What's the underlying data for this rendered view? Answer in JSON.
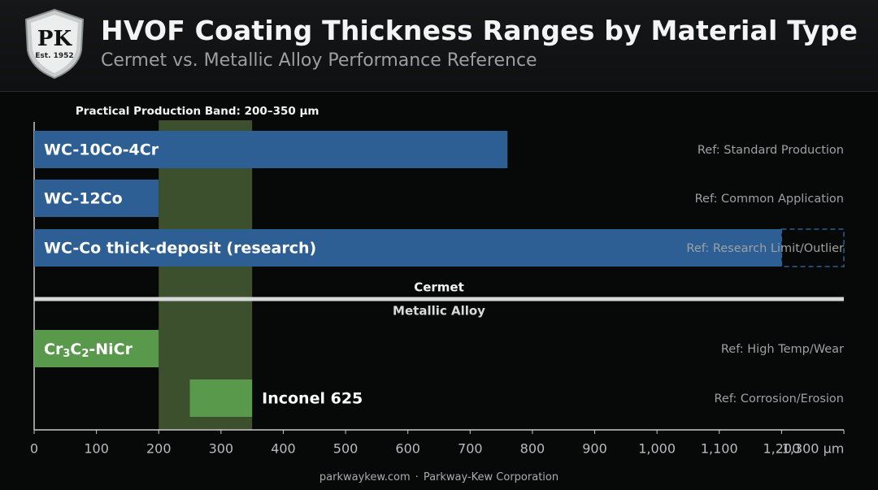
{
  "header": {
    "logo_text": "PK",
    "logo_subtext": "Est. 1952",
    "title": "HVOF Coating Thickness Ranges by Material Type",
    "subtitle": "Cermet vs. Metallic Alloy Performance Reference"
  },
  "chart_data": {
    "type": "bar",
    "orientation": "horizontal",
    "x_unit": "µm",
    "xlim": [
      0,
      1300
    ],
    "x_ticks": [
      "0",
      "100",
      "200",
      "300",
      "400",
      "500",
      "600",
      "700",
      "800",
      "900",
      "1,000",
      "1,100",
      "1,200",
      "1,300 µm"
    ],
    "band": {
      "label": "Practical Production Band: 200–350 µm",
      "start": 200,
      "end": 350
    },
    "divider": {
      "upper_label": "Cermet",
      "lower_label": "Metallic Alloy"
    },
    "groups": [
      {
        "name": "Cermet",
        "color": "#2d5f94",
        "bars": [
          {
            "label": "WC-10Co-4Cr",
            "start": 0,
            "end": 760,
            "ref": "Ref: Standard Production"
          },
          {
            "label": "WC-12Co",
            "start": 0,
            "end": 200,
            "ref": "Ref: Common Application"
          },
          {
            "label": "WC-Co thick-deposit (research)",
            "start": 0,
            "end": 1200,
            "dashed_to": 1300,
            "ref": "Ref: Research Limit/Outlier"
          }
        ]
      },
      {
        "name": "Metallic Alloy",
        "color": "#58994b",
        "bars": [
          {
            "label": "Cr3C2-NiCr",
            "start": 0,
            "end": 200,
            "ref": "Ref: High Temp/Wear"
          },
          {
            "label": "Inconel 625",
            "start": 250,
            "end": 350,
            "ref": "Ref: Corrosion/Erosion"
          }
        ]
      }
    ]
  },
  "footer": {
    "site": "parkwaykew.com",
    "company": "Parkway-Kew Corporation"
  }
}
